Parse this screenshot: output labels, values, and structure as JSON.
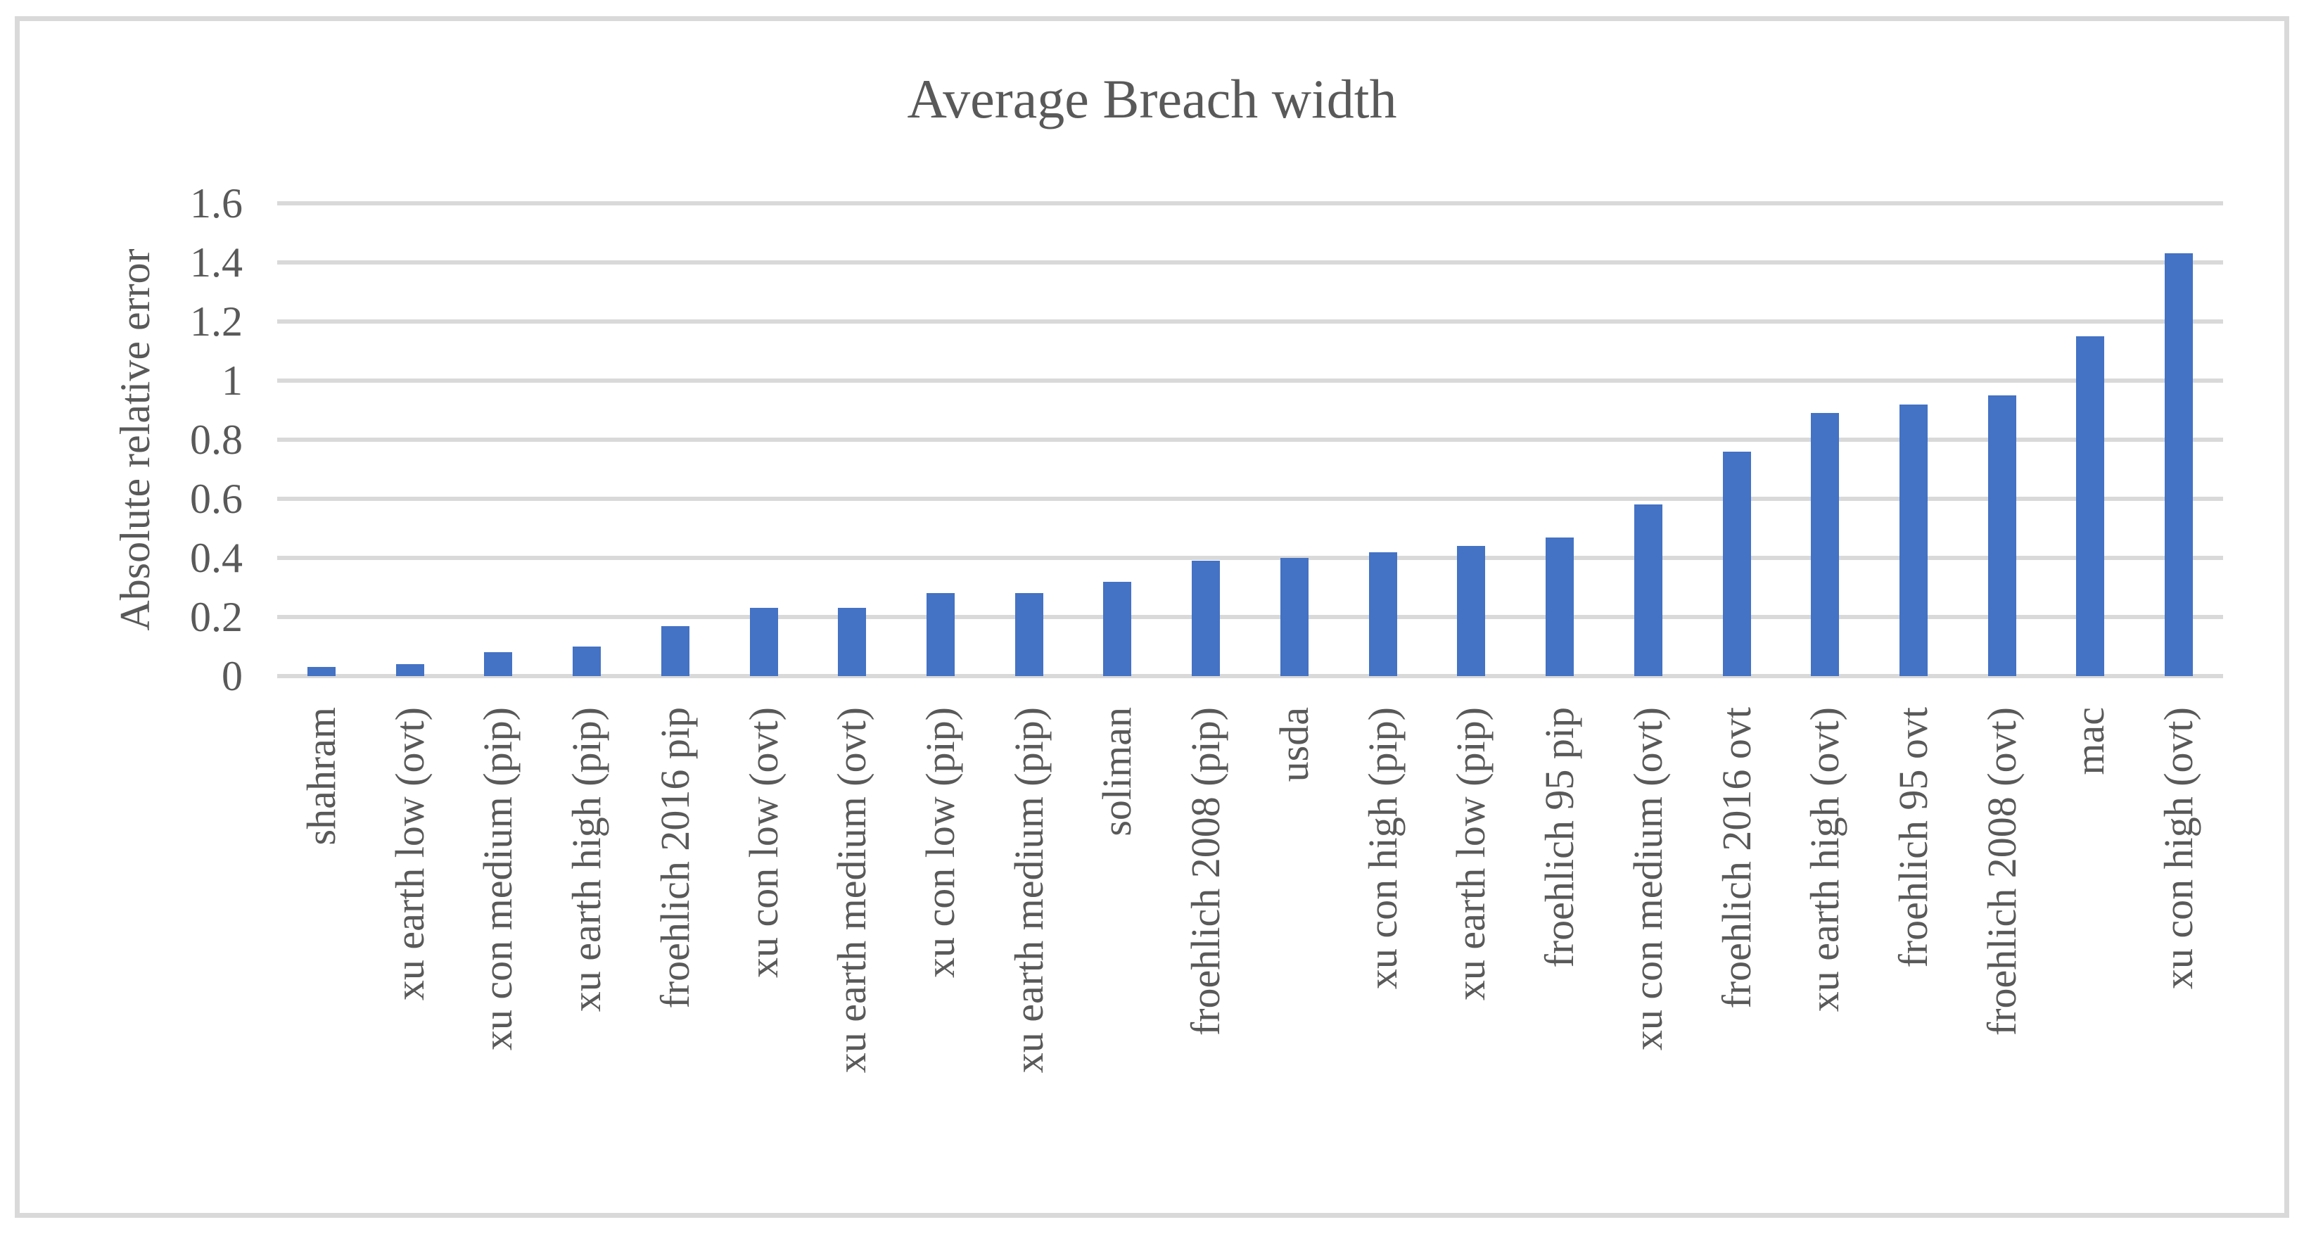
{
  "chart_data": {
    "type": "bar",
    "title": "Average Breach width",
    "ylabel": "Absolute relative error",
    "xlabel": "",
    "categories": [
      "shahram",
      "xu earth low (ovt)",
      "xu con medium (pip)",
      "xu earth high (pip)",
      "froehlich 2016 pip",
      "xu con low (ovt)",
      "xu earth medium (ovt)",
      "xu con low (pip)",
      "xu earth medium (pip)",
      "soliman",
      "froehlich 2008 (pip)",
      "usda",
      "xu con high (pip)",
      "xu earth low (pip)",
      "froehlich 95 pip",
      "xu con medium (ovt)",
      "froehlich 2016 ovt",
      "xu earth high (ovt)",
      "froehlich 95 ovt",
      "froehlich 2008 (ovt)",
      "mac",
      "xu con high (ovt)"
    ],
    "values": [
      0.03,
      0.04,
      0.08,
      0.1,
      0.17,
      0.23,
      0.23,
      0.28,
      0.28,
      0.32,
      0.39,
      0.4,
      0.42,
      0.44,
      0.47,
      0.58,
      0.76,
      0.89,
      0.92,
      0.95,
      1.15,
      1.43
    ],
    "ylim": [
      0,
      1.6
    ],
    "ytick_step": 0.2,
    "yticks": [
      "0",
      "0.2",
      "0.4",
      "0.6",
      "0.8",
      "1",
      "1.2",
      "1.4",
      "1.6"
    ],
    "grid": "horizontal-only",
    "legend": "none",
    "colors": {
      "bar": "#4472C4",
      "gridline": "#D9D9D9",
      "text": "#595959",
      "frame_border": "#D9D9D9",
      "background": "#FFFFFF"
    }
  }
}
